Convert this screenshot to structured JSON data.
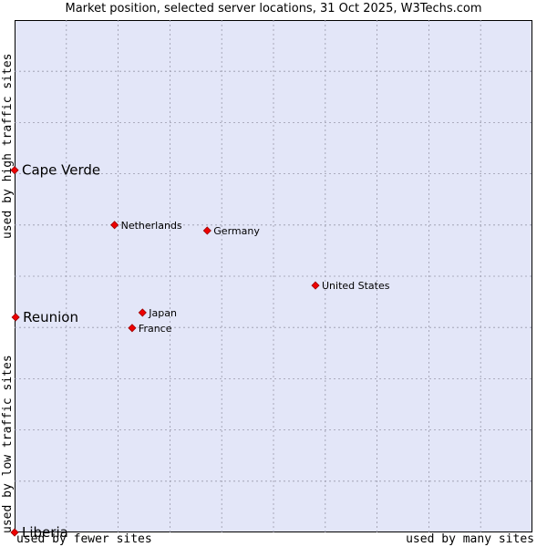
{
  "chart_data": {
    "type": "scatter",
    "title": "Market position, selected server locations, 31 Oct 2025, W3Techs.com",
    "xlabel_low": "used by fewer sites",
    "xlabel_high": "used by many sites",
    "ylabel_low": "used by low traffic sites",
    "ylabel_high": "used by high traffic sites",
    "xlim": [
      0,
      10
    ],
    "ylim": [
      0,
      10
    ],
    "grid": true,
    "point_color": "#ee0000",
    "points": [
      {
        "name": "Cape Verde",
        "x": 0.0,
        "y": 7.07,
        "highlight": true
      },
      {
        "name": "Netherlands",
        "x": 1.93,
        "y": 6.0,
        "highlight": false
      },
      {
        "name": "Germany",
        "x": 3.72,
        "y": 5.89,
        "highlight": false
      },
      {
        "name": "United States",
        "x": 5.81,
        "y": 4.82,
        "highlight": false
      },
      {
        "name": "Japan",
        "x": 2.47,
        "y": 4.29,
        "highlight": false
      },
      {
        "name": "France",
        "x": 2.27,
        "y": 3.99,
        "highlight": false
      },
      {
        "name": "Reunion",
        "x": 0.02,
        "y": 4.2,
        "highlight": true
      },
      {
        "name": "Liberia",
        "x": 0.0,
        "y": 0.0,
        "highlight": true
      }
    ]
  }
}
